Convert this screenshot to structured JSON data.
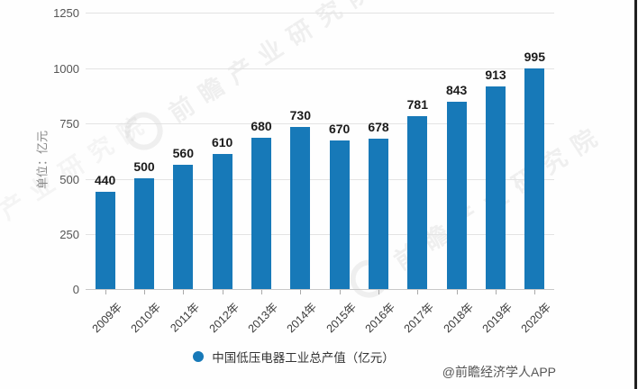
{
  "chart_data": {
    "type": "bar",
    "title": "",
    "categories": [
      "2009年",
      "2010年",
      "2011年",
      "2012年",
      "2013年",
      "2014年",
      "2015年",
      "2016年",
      "2017年",
      "2018年",
      "2019年",
      "2020年"
    ],
    "values": [
      440,
      500,
      560,
      610,
      680,
      730,
      670,
      678,
      781,
      843,
      913,
      995
    ],
    "series_name": "中国低压电器工业总产值（亿元）",
    "xlabel": "",
    "ylabel": "单位：亿元",
    "ylim": [
      0,
      1250
    ],
    "yticks": [
      0,
      250,
      500,
      750,
      1000,
      1250
    ],
    "grid": true,
    "legend_position": "bottom",
    "bar_color": "#1779b8"
  },
  "legend": {
    "items": [
      {
        "label": "中国低压电器工业总产值（亿元）",
        "marker": "circle",
        "color": "#1779b8"
      }
    ]
  },
  "attribution": {
    "text": "@前瞻经济学人APP"
  },
  "watermark": {
    "text": "前瞻产业研究院",
    "logo": "ring"
  },
  "colors": {
    "bar": "#1779b8",
    "grid": "#e3e3e3",
    "axis": "#c8c8c8",
    "value_label": "#1b1b1b",
    "y_tick_label": "#555555",
    "x_tick_label": "#3a3a3a",
    "legend_text": "#333333",
    "attribution": "#555555",
    "background": "#fefefe",
    "right_edge_line": "#1f1f1f",
    "watermark": "#8a8a8a"
  }
}
